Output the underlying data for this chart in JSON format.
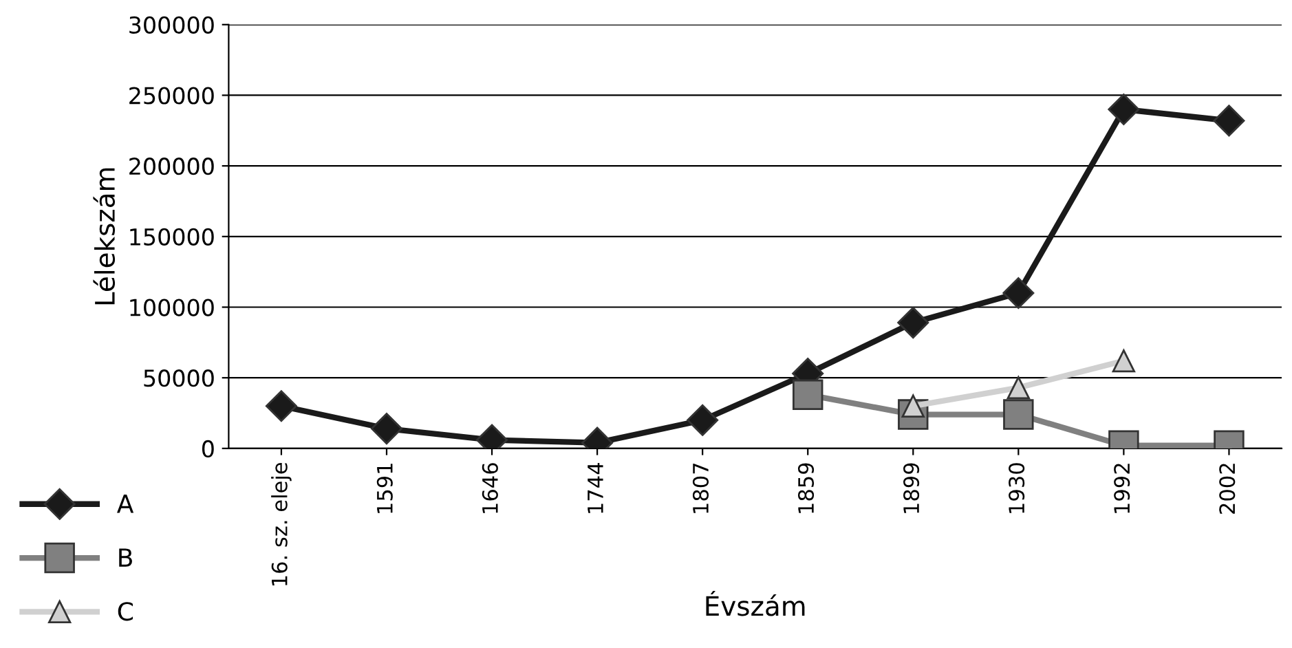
{
  "chart_data": {
    "type": "line",
    "xlabel": "Évszám",
    "ylabel": "Lélekszám",
    "categories": [
      "16. sz. eleje",
      "1591",
      "1646",
      "1744",
      "1807",
      "1859",
      "1899",
      "1930",
      "1992",
      "2002"
    ],
    "series": [
      {
        "name": "A",
        "color": "#1a1a1a",
        "marker": "diamond",
        "values": [
          30000,
          14000,
          6000,
          4000,
          20000,
          53000,
          89000,
          110000,
          240000,
          232000
        ]
      },
      {
        "name": "B",
        "color": "#808080",
        "marker": "square",
        "values": [
          null,
          null,
          null,
          null,
          null,
          38000,
          24000,
          24000,
          2000,
          2000
        ]
      },
      {
        "name": "C",
        "color": "#d0d0d0",
        "marker": "triangle",
        "values": [
          null,
          null,
          null,
          null,
          null,
          null,
          30000,
          43000,
          62000,
          null
        ]
      }
    ],
    "ylim": [
      0,
      300000
    ],
    "yticks": [
      0,
      50000,
      100000,
      150000,
      200000,
      250000,
      300000
    ],
    "grid": "y",
    "legend": "bottom left",
    "line_style": "solid"
  }
}
